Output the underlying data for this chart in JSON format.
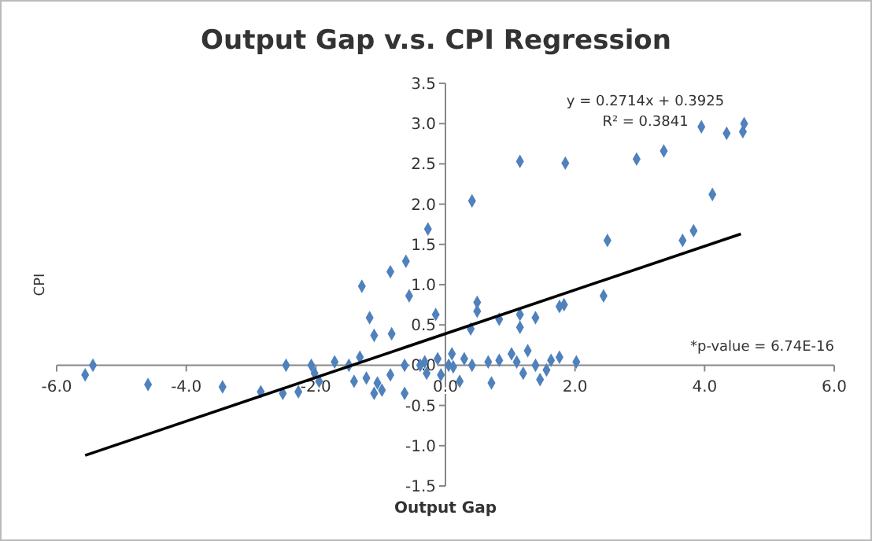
{
  "chart_data": {
    "type": "scatter",
    "title": "Output Gap v.s. CPI Regression",
    "xlabel": "Output Gap",
    "ylabel": "CPI",
    "annotations": [
      "y = 0.2714x + 0.3925",
      "R² = 0.3841",
      "*p-value = 6.74E-16"
    ],
    "xlim": [
      -6,
      6
    ],
    "xticks": [
      {
        "value": -6,
        "label": "-6.0"
      },
      {
        "value": -4,
        "label": "-4.0"
      },
      {
        "value": -2,
        "label": "-2.0"
      },
      {
        "value": 0,
        "label": "0.0"
      },
      {
        "value": 2,
        "label": "2.0"
      },
      {
        "value": 4,
        "label": "4.0"
      },
      {
        "value": 6,
        "label": "6.0"
      }
    ],
    "ylim": [
      -1.5,
      3.5
    ],
    "yticks": [
      -1.5,
      {
        "value": -1,
        "label": "-1.0"
      },
      -0.5,
      {
        "value": 0,
        "label": "0.0"
      },
      0.5,
      {
        "value": 1,
        "label": "1.0"
      },
      1.5,
      {
        "value": 2,
        "label": "2.0"
      },
      2.5,
      {
        "value": 3,
        "label": "3.0"
      },
      3.5
    ],
    "grid": false,
    "series": [
      {
        "color": "#4f81bd",
        "marker": "diamond",
        "x": [
          0.41,
          1.15,
          1.85,
          2.95,
          3.37,
          3.95,
          4.34,
          4.59,
          4.61,
          4.12,
          -0.27,
          2.5,
          3.66,
          3.83,
          -5.56,
          -5.44,
          -4.59,
          -3.44,
          -2.85,
          -2.46,
          -2.51,
          -2.27,
          -2.07,
          -2.02,
          -1.95,
          -1.71,
          -1.49,
          -1.41,
          -1.32,
          -1.22,
          -1.17,
          -1.1,
          -1.05,
          -1.1,
          -0.98,
          -0.85,
          -0.83,
          -0.63,
          -0.63,
          -0.56,
          -0.85,
          -1.29,
          -0.39,
          -0.29,
          -0.15,
          -0.12,
          -0.07,
          0.05,
          -0.61,
          0.49,
          0.49,
          0.39,
          0.83,
          1.15,
          1.15,
          1.39,
          1.76,
          1.83,
          2.44,
          -0.32,
          0.1,
          0.12,
          0.22,
          0.29,
          0.41,
          0.71,
          0.66,
          0.83,
          1.02,
          1.1,
          1.2,
          1.27,
          1.39,
          1.46,
          1.56,
          1.63,
          1.76,
          2.02
        ],
        "values": [
          2.04,
          2.53,
          2.51,
          2.56,
          2.66,
          2.96,
          2.88,
          2.9,
          3.0,
          2.12,
          1.69,
          1.55,
          1.55,
          1.67,
          -0.12,
          0,
          -0.24,
          -0.27,
          -0.33,
          0,
          -0.35,
          -0.33,
          0,
          -0.1,
          -0.2,
          0.04,
          0,
          -0.2,
          0.1,
          -0.16,
          0.59,
          0.37,
          -0.22,
          -0.35,
          -0.31,
          -0.12,
          0.39,
          -0.35,
          0,
          0.86,
          1.16,
          0.98,
          0,
          -0.1,
          0.63,
          0.08,
          -0.12,
          0,
          1.29,
          0.78,
          0.67,
          0.45,
          0.57,
          0.63,
          0.47,
          0.59,
          0.73,
          0.75,
          0.86,
          0.04,
          0.14,
          -0.02,
          -0.2,
          0.08,
          0,
          -0.22,
          0.04,
          0.06,
          0.14,
          0.04,
          -0.1,
          0.18,
          0,
          -0.18,
          -0.06,
          0.06,
          0.1,
          0.04
        ]
      },
      {
        "type": "line",
        "marker": "none",
        "color": "#000000",
        "x": [
          -5.56,
          4.56
        ],
        "values": [
          -1.12,
          1.63
        ]
      }
    ]
  }
}
